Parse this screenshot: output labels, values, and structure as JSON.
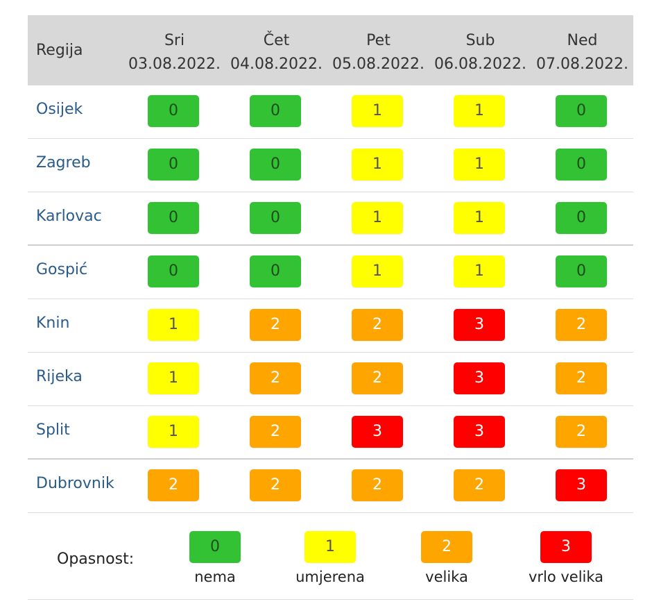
{
  "header": {
    "region_label": "Regija",
    "days": [
      {
        "day": "Sri",
        "date": "03.08.2022."
      },
      {
        "day": "Čet",
        "date": "04.08.2022."
      },
      {
        "day": "Pet",
        "date": "05.08.2022."
      },
      {
        "day": "Sub",
        "date": "06.08.2022."
      },
      {
        "day": "Ned",
        "date": "07.08.2022."
      }
    ]
  },
  "rows": [
    {
      "region": "Osijek",
      "values": [
        "0",
        "0",
        "1",
        "1",
        "0"
      ]
    },
    {
      "region": "Zagreb",
      "values": [
        "0",
        "0",
        "1",
        "1",
        "0"
      ]
    },
    {
      "region": "Karlovac",
      "values": [
        "0",
        "0",
        "1",
        "1",
        "0"
      ]
    },
    {
      "region": "Gospić",
      "values": [
        "0",
        "0",
        "1",
        "1",
        "0"
      ]
    },
    {
      "region": "Knin",
      "values": [
        "1",
        "2",
        "2",
        "3",
        "2"
      ]
    },
    {
      "region": "Rijeka",
      "values": [
        "1",
        "2",
        "2",
        "3",
        "2"
      ]
    },
    {
      "region": "Split",
      "values": [
        "1",
        "2",
        "3",
        "3",
        "2"
      ]
    },
    {
      "region": "Dubrovnik",
      "values": [
        "2",
        "2",
        "2",
        "2",
        "3"
      ]
    }
  ],
  "legend": {
    "title": "Opasnost:",
    "items": [
      {
        "value": "0",
        "label": "nema"
      },
      {
        "value": "1",
        "label": "umjerena"
      },
      {
        "value": "2",
        "label": "velika"
      },
      {
        "value": "3",
        "label": "vrlo velika"
      }
    ]
  },
  "colors": {
    "0": {
      "bg": "#33c233",
      "fg": "#1e4d1e"
    },
    "1": {
      "bg": "#ffff00",
      "fg": "#555555"
    },
    "2": {
      "bg": "#ffa500",
      "fg": "#ffffff"
    },
    "3": {
      "bg": "#ff0000",
      "fg": "#ffffff"
    }
  }
}
